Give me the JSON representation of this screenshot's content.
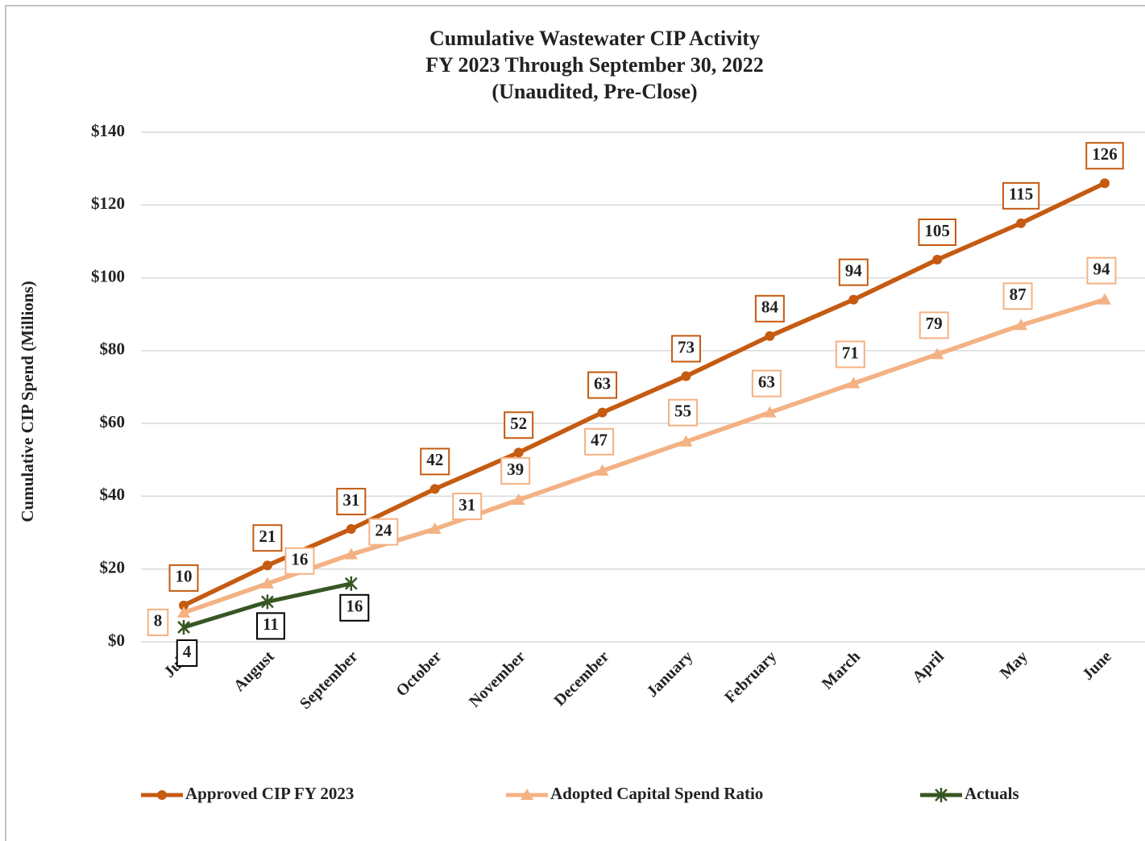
{
  "chart_data": {
    "type": "line",
    "title": [
      "Cumulative Wastewater CIP Activity",
      "FY 2023 Through September 30, 2022",
      "(Unaudited, Pre-Close)"
    ],
    "y_label": "Cumulative CIP Spend (Millions)",
    "categories": [
      "July",
      "August",
      "September",
      "October",
      "November",
      "December",
      "January",
      "February",
      "March",
      "April",
      "May",
      "June"
    ],
    "series": [
      {
        "name": "Approved CIP FY 2023",
        "color": "#c55a11",
        "marker": "circle",
        "values": [
          10,
          21,
          31,
          42,
          52,
          63,
          73,
          84,
          94,
          105,
          115,
          126
        ]
      },
      {
        "name": "Adopted Capital Spend Ratio",
        "color": "#f4b183",
        "marker": "triangle",
        "values": [
          8,
          16,
          24,
          31,
          39,
          47,
          55,
          63,
          71,
          79,
          87,
          94
        ]
      },
      {
        "name": "Actuals",
        "color": "#375623",
        "marker": "star",
        "values": [
          4,
          11,
          16,
          null,
          null,
          null,
          null,
          null,
          null,
          null,
          null,
          null
        ]
      }
    ],
    "ylim": [
      0,
      140
    ],
    "yticks": [
      {
        "value": 0,
        "label": "$0"
      },
      {
        "value": 20,
        "label": "$20"
      },
      {
        "value": 40,
        "label": "$40"
      },
      {
        "value": 60,
        "label": "$60"
      },
      {
        "value": 80,
        "label": "$80"
      },
      {
        "value": 100,
        "label": "$100"
      },
      {
        "value": 120,
        "label": "$120"
      },
      {
        "value": 140,
        "label": "$140"
      }
    ],
    "grid": true,
    "legend": "bottom"
  }
}
